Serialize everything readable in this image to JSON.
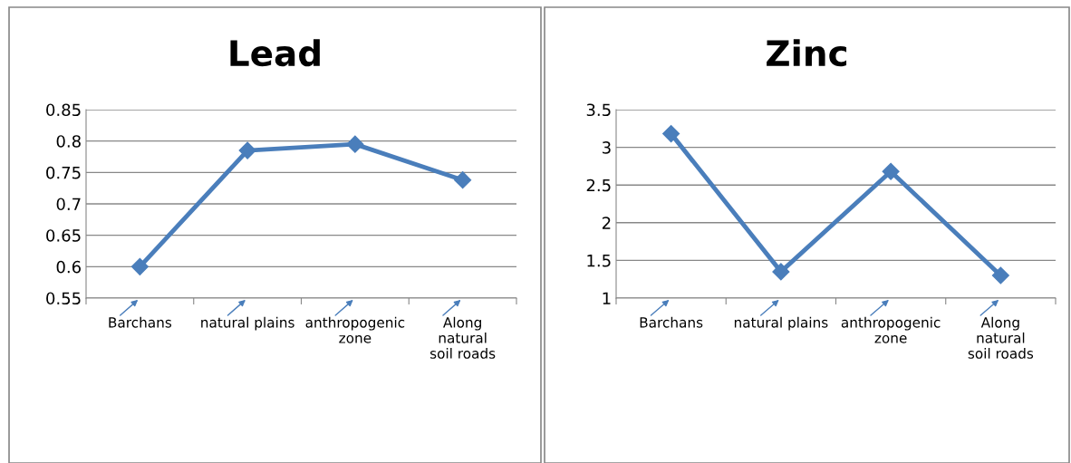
{
  "chart_data": [
    {
      "type": "line",
      "title": "Lead",
      "categories": [
        "Barchans",
        "natural plains",
        "anthropogenic\nzone",
        "Along\nnatural\nsoil roads"
      ],
      "series": [
        {
          "color": "#4a7ebb",
          "values": [
            0.6,
            0.785,
            0.795,
            0.738
          ]
        }
      ],
      "ylim": [
        0.55,
        0.85
      ],
      "yticks": [
        0.55,
        0.6,
        0.65,
        0.7,
        0.75,
        0.8,
        0.85
      ],
      "grid": "y",
      "legend": false,
      "marker": "diamond",
      "line_style": "solid"
    },
    {
      "type": "line",
      "title": "Zinc",
      "categories": [
        "Barchans",
        "natural plains",
        "anthropogenic\nzone",
        "Along\nnatural\nsoil roads"
      ],
      "series": [
        {
          "color": "#4a7ebb",
          "values": [
            3.18,
            1.35,
            2.68,
            1.3
          ]
        }
      ],
      "ylim": [
        1,
        3.5
      ],
      "yticks": [
        1,
        1.5,
        2,
        2.5,
        3,
        3.5
      ],
      "grid": "y",
      "legend": false,
      "marker": "diamond",
      "line_style": "solid"
    }
  ]
}
